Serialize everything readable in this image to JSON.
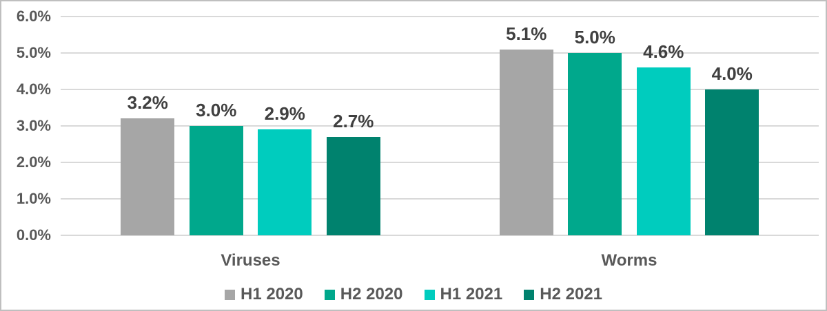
{
  "chart_data": {
    "type": "bar",
    "categories": [
      "Viruses",
      "Worms"
    ],
    "series": [
      {
        "name": "H1 2020",
        "color": "#a6a6a6",
        "values": [
          3.2,
          5.1
        ]
      },
      {
        "name": "H2 2020",
        "color": "#00a88c",
        "values": [
          3.0,
          5.0
        ]
      },
      {
        "name": "H1 2021",
        "color": "#00ccbe",
        "values": [
          2.9,
          4.6
        ]
      },
      {
        "name": "H2 2021",
        "color": "#00826e",
        "values": [
          2.7,
          4.0
        ]
      }
    ],
    "data_labels": [
      [
        "3.2%",
        "3.0%",
        "2.9%",
        "2.7%"
      ],
      [
        "5.1%",
        "5.0%",
        "4.6%",
        "4.0%"
      ]
    ],
    "y_ticks": [
      "0.0%",
      "1.0%",
      "2.0%",
      "3.0%",
      "4.0%",
      "5.0%",
      "6.0%"
    ],
    "ylim": [
      0,
      6
    ],
    "grid": true,
    "legend_position": "bottom",
    "title": "",
    "xlabel": "",
    "ylabel": ""
  },
  "colors": {
    "gridline": "#d9d9d9",
    "axis_text": "#595959",
    "data_label_text": "#404040",
    "border": "#bfbfbf",
    "background": "#ffffff"
  }
}
